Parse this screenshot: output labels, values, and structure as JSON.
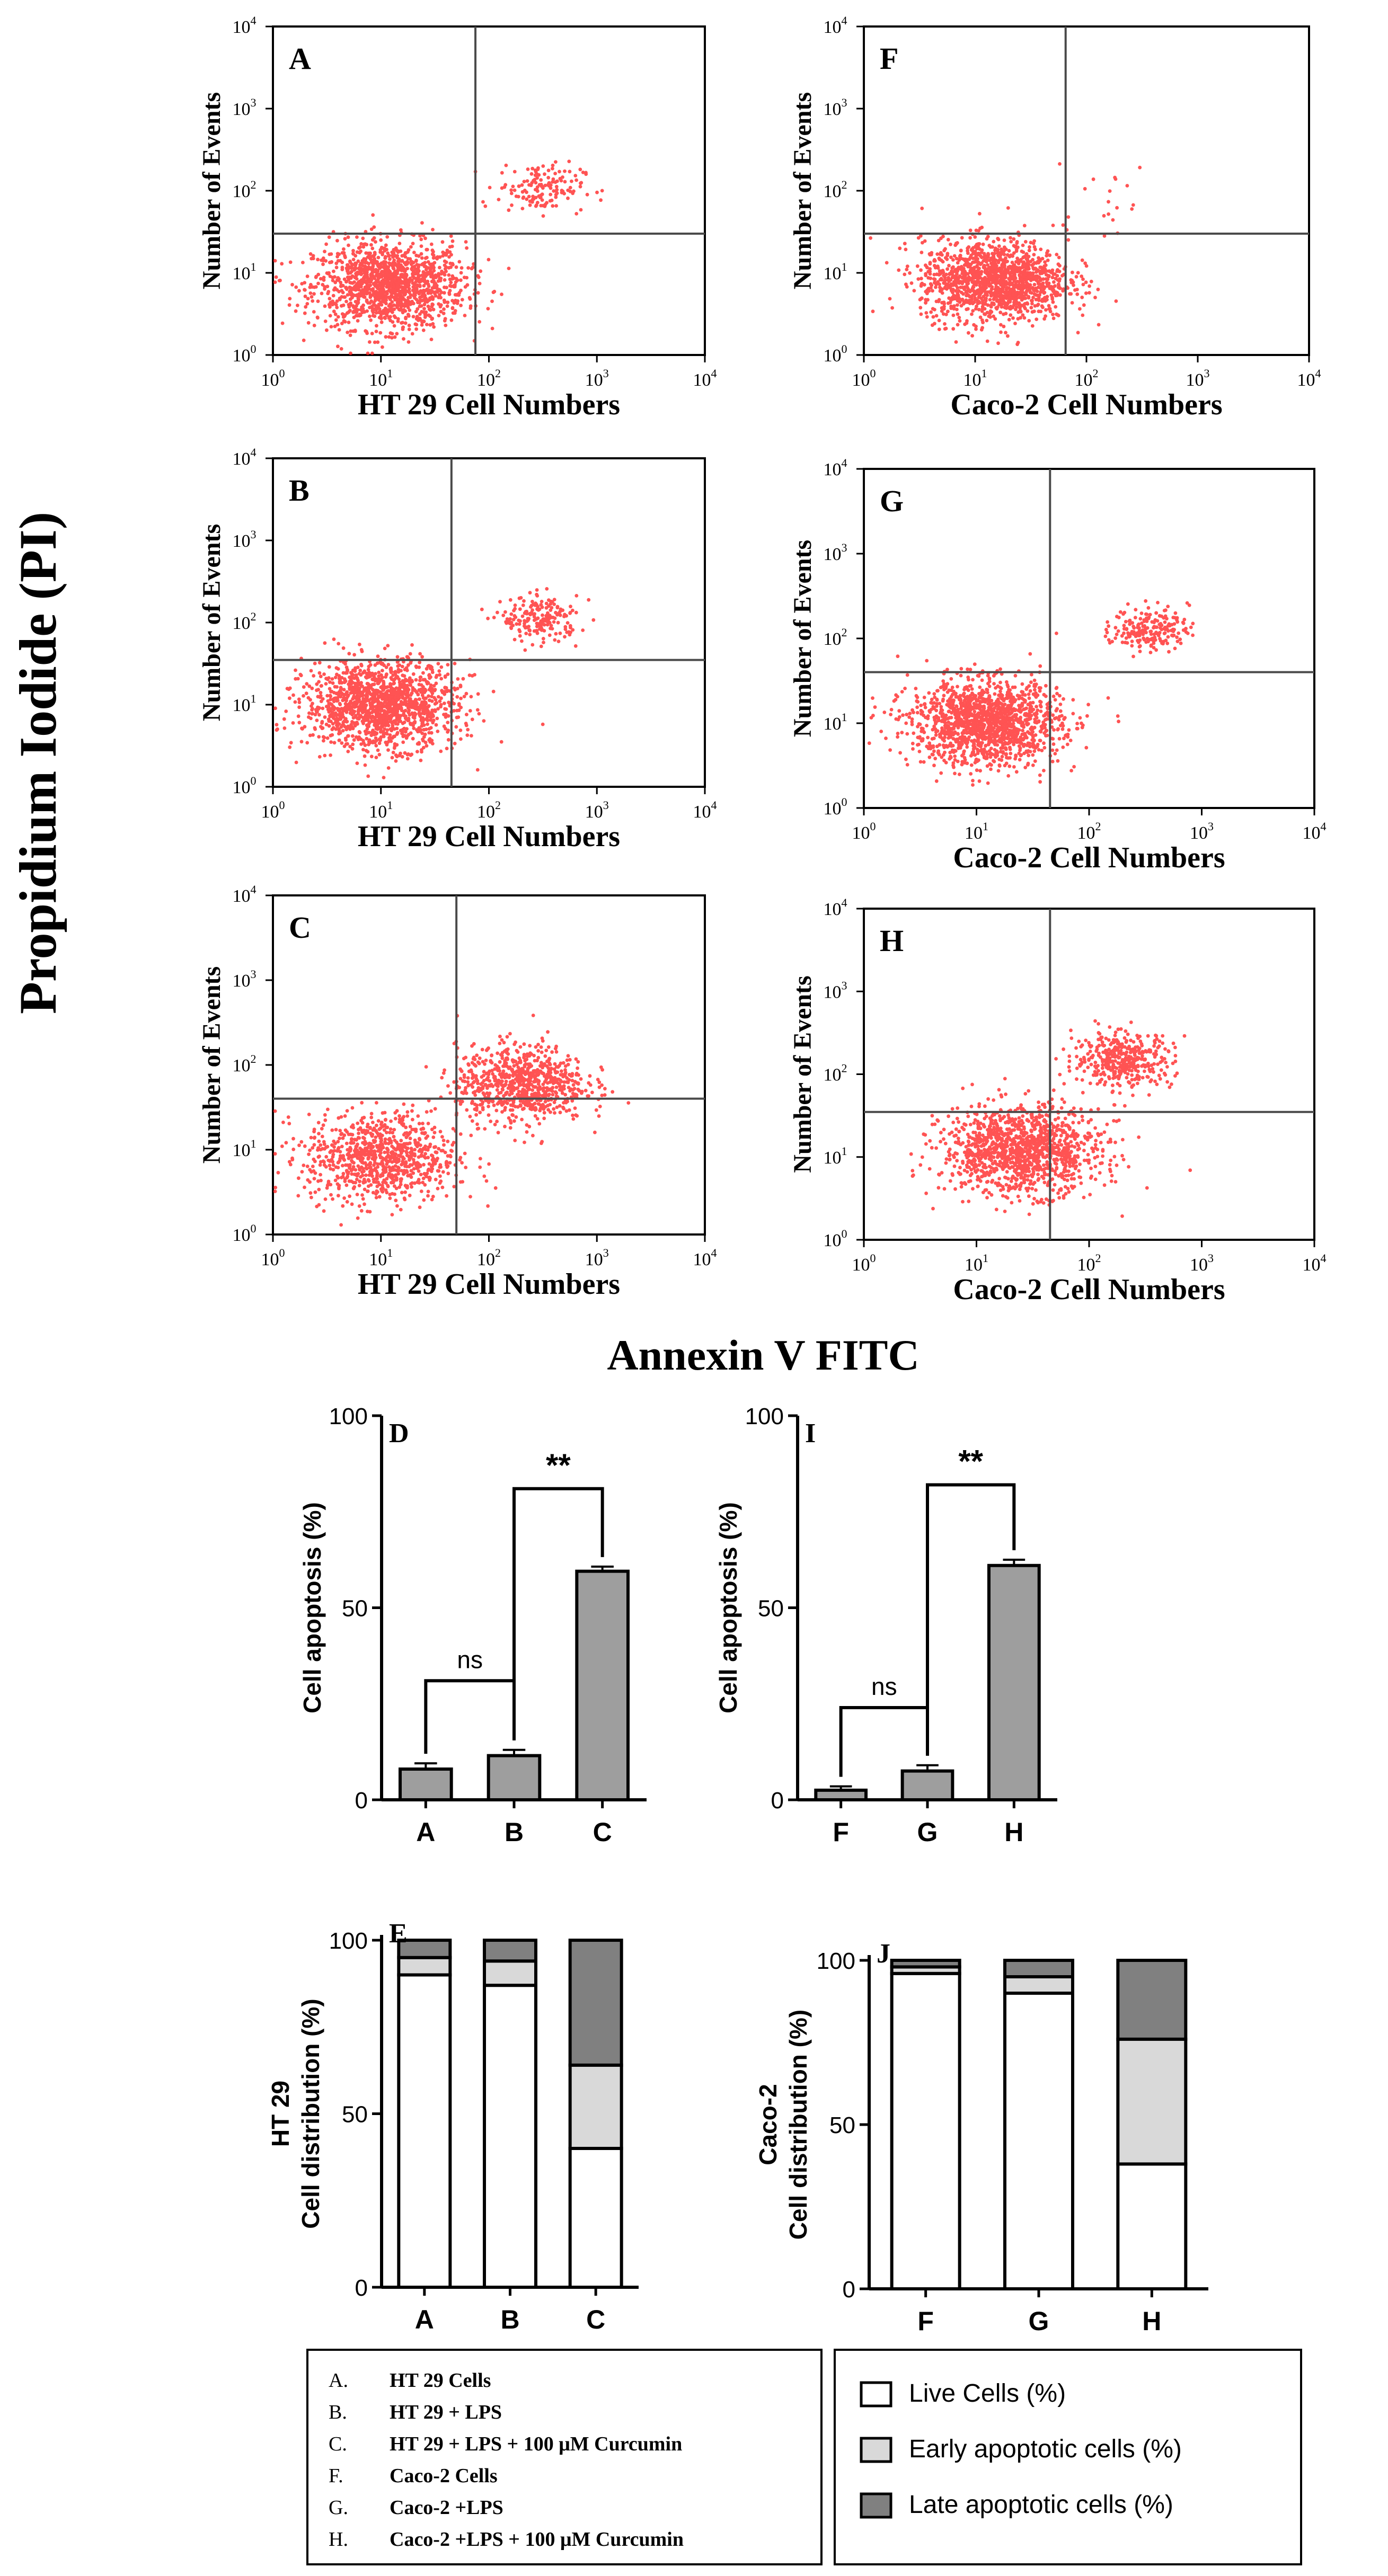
{
  "figure": {
    "y_title": "Propidium Iodide (PI)",
    "x_title": "Annexin V FITC",
    "panel_ylabel": "Number of Events"
  },
  "ticks": {
    "pow": [
      "0",
      "1",
      "2",
      "3",
      "4"
    ]
  },
  "chart_data": [
    {
      "type": "scatter",
      "id": "A",
      "xlabel": "HT 29 Cell Numbers",
      "ylabel": "Number of Events",
      "axis": "log10",
      "xlim": [
        1,
        10000
      ],
      "ylim": [
        1,
        10000
      ],
      "gate_x": 75,
      "gate_y": 30,
      "clusters": [
        {
          "cx": 12,
          "cy": 7,
          "n": 1400,
          "spread": 0.35
        },
        {
          "cx": 300,
          "cy": 110,
          "n": 150,
          "spread": 0.2
        }
      ]
    },
    {
      "type": "scatter",
      "id": "F",
      "xlabel": "Caco-2 Cell Numbers",
      "ylabel": "Number of Events",
      "axis": "log10",
      "xlim": [
        1,
        10000
      ],
      "ylim": [
        1,
        10000
      ],
      "gate_x": 65,
      "gate_y": 30,
      "clusters": [
        {
          "cx": 15,
          "cy": 8,
          "n": 1400,
          "spread": 0.33
        },
        {
          "cx": 120,
          "cy": 70,
          "n": 20,
          "spread": 0.3
        }
      ]
    },
    {
      "type": "scatter",
      "id": "B",
      "xlabel": "HT 29 Cell Numbers",
      "ylabel": "Number of Events",
      "axis": "log10",
      "xlim": [
        1,
        10000
      ],
      "ylim": [
        1,
        10000
      ],
      "gate_x": 45,
      "gate_y": 35,
      "clusters": [
        {
          "cx": 10,
          "cy": 10,
          "n": 1500,
          "spread": 0.35
        },
        {
          "cx": 300,
          "cy": 110,
          "n": 200,
          "spread": 0.18
        }
      ]
    },
    {
      "type": "scatter",
      "id": "G",
      "xlabel": "Caco-2 Cell Numbers",
      "ylabel": "Number of Events",
      "axis": "log10",
      "xlim": [
        1,
        10000
      ],
      "ylim": [
        1,
        10000
      ],
      "gate_x": 45,
      "gate_y": 40,
      "clusters": [
        {
          "cx": 12,
          "cy": 10,
          "n": 1500,
          "spread": 0.33
        },
        {
          "cx": 350,
          "cy": 130,
          "n": 200,
          "spread": 0.17
        }
      ]
    },
    {
      "type": "scatter",
      "id": "C",
      "xlabel": "HT 29 Cell Numbers",
      "ylabel": "Number of Events",
      "axis": "log10",
      "xlim": [
        1,
        10000
      ],
      "ylim": [
        1,
        10000
      ],
      "gate_x": 50,
      "gate_y": 40,
      "clusters": [
        {
          "cx": 10,
          "cy": 8,
          "n": 900,
          "spread": 0.35
        },
        {
          "cx": 200,
          "cy": 60,
          "n": 800,
          "spread": 0.3
        }
      ]
    },
    {
      "type": "scatter",
      "id": "H",
      "xlabel": "Caco-2 Cell Numbers",
      "ylabel": "Number of Events",
      "axis": "log10",
      "xlim": [
        1,
        10000
      ],
      "ylim": [
        1,
        10000
      ],
      "gate_x": 45,
      "gate_y": 35,
      "clusters": [
        {
          "cx": 25,
          "cy": 12,
          "n": 1300,
          "spread": 0.35
        },
        {
          "cx": 200,
          "cy": 150,
          "n": 400,
          "spread": 0.22
        }
      ]
    },
    {
      "type": "bar",
      "id": "D",
      "ylabel": "Cell apoptosis (%)",
      "categories": [
        "A",
        "B",
        "C"
      ],
      "values": [
        8,
        11.5,
        59.5
      ],
      "errors": [
        1.5,
        1.5,
        1.2
      ],
      "ylim": [
        0,
        100
      ],
      "yticks": [
        0,
        50,
        100
      ],
      "annotations": [
        {
          "from": 0,
          "to": 1,
          "label": "ns",
          "level": 31
        },
        {
          "from": 1,
          "to": 2,
          "label": "**",
          "level": 81
        }
      ]
    },
    {
      "type": "bar",
      "id": "I",
      "ylabel": "Cell apoptosis (%)",
      "categories": [
        "F",
        "G",
        "H"
      ],
      "values": [
        2.5,
        7.5,
        61
      ],
      "errors": [
        1,
        1.5,
        1.5
      ],
      "ylim": [
        0,
        100
      ],
      "yticks": [
        0,
        50,
        100
      ],
      "annotations": [
        {
          "from": 0,
          "to": 1,
          "label": "ns",
          "level": 24
        },
        {
          "from": 1,
          "to": 2,
          "label": "**",
          "level": 82
        }
      ]
    },
    {
      "type": "stacked-bar",
      "id": "E",
      "ylabel": "Cell distribution (%)",
      "ylabel_top": "HT 29",
      "categories": [
        "A",
        "B",
        "C"
      ],
      "ylim": [
        0,
        100
      ],
      "yticks": [
        0,
        50,
        100
      ],
      "series": [
        {
          "name": "Live Cells (%)",
          "values": [
            90,
            87,
            40
          ]
        },
        {
          "name": "Early apoptotic cells (%)",
          "values": [
            5,
            7,
            24
          ]
        },
        {
          "name": "Late apoptotic cells (%)",
          "values": [
            5,
            6,
            36
          ]
        }
      ]
    },
    {
      "type": "stacked-bar",
      "id": "J",
      "ylabel": "Cell distribution (%)",
      "ylabel_top": "Caco-2",
      "categories": [
        "F",
        "G",
        "H"
      ],
      "ylim": [
        0,
        100
      ],
      "yticks": [
        0,
        50,
        100
      ],
      "series": [
        {
          "name": "Live Cells (%)",
          "values": [
            96,
            90,
            38
          ]
        },
        {
          "name": "Early apoptotic cells (%)",
          "values": [
            2,
            5,
            38
          ]
        },
        {
          "name": "Late apoptotic cells (%)",
          "values": [
            2,
            5,
            24
          ]
        }
      ]
    }
  ],
  "legend_groups": {
    "items": [
      {
        "key": "A.",
        "text": "HT 29 Cells"
      },
      {
        "key": "B.",
        "text": "HT 29 + LPS"
      },
      {
        "key": "C.",
        "text": "HT 29 + LPS + 100 μM Curcumin"
      },
      {
        "key": "F.",
        "text": "Caco-2 Cells"
      },
      {
        "key": "G.",
        "text": "Caco-2 +LPS"
      },
      {
        "key": "H.",
        "text": "Caco-2 +LPS + 100 μM Curcumin"
      }
    ]
  },
  "legend_series": {
    "items": [
      {
        "label": "Live Cells (%)",
        "color": "#ffffff"
      },
      {
        "label": "Early apoptotic cells (%)",
        "color": "#d9d9d9"
      },
      {
        "label": "Late apoptotic cells (%)",
        "color": "#808080"
      }
    ]
  },
  "colors": {
    "dots": "#ff1a1a",
    "bar_fill": "#9e9e9e",
    "axis": "#000000",
    "gate": "#4a4a4a"
  }
}
